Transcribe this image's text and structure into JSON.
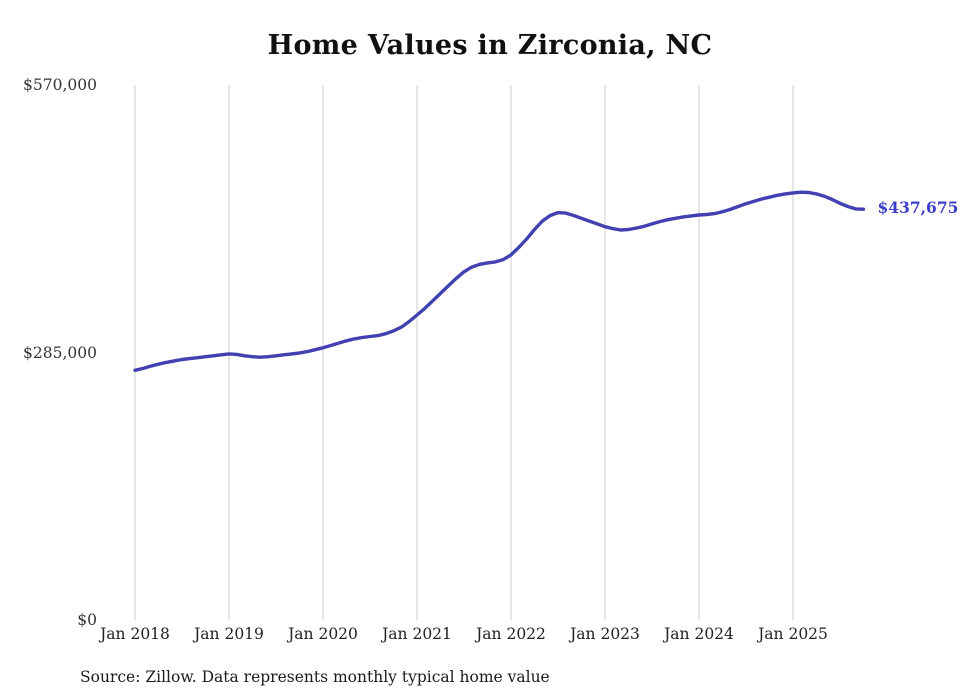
{
  "page": {
    "title": "Home Values in Zirconia, NC",
    "source_note": "Source: Zillow. Data represents monthly typical home value"
  },
  "chart_data": {
    "type": "line",
    "title": "Home Values in Zirconia, NC",
    "x_start": "2018-01",
    "x_end": "2025-10",
    "x_tick_labels": [
      "Jan 2018",
      "Jan 2019",
      "Jan 2020",
      "Jan 2021",
      "Jan 2022",
      "Jan 2023",
      "Jan 2024",
      "Jan 2025"
    ],
    "x_tick_month_indices": [
      0,
      12,
      24,
      36,
      48,
      60,
      72,
      84
    ],
    "y_ticks": [
      {
        "value": 570000,
        "label": "$570,000"
      },
      {
        "value": 285000,
        "label": "$285,000"
      },
      {
        "value": 0,
        "label": "$0"
      }
    ],
    "ylim": [
      0,
      570000
    ],
    "grid": "vertical-only",
    "legend": "none",
    "end_label": "$437,675",
    "line_color": "#4141b2",
    "end_label_color": "#3d3dcb",
    "gridline_color": "#cccccc",
    "series": [
      {
        "name": "Monthly typical home value",
        "values": [
          266000,
          268000,
          270500,
          272500,
          274500,
          276000,
          277500,
          278500,
          279500,
          280500,
          281500,
          282500,
          283500,
          283000,
          281500,
          280500,
          280000,
          280500,
          281500,
          282500,
          283500,
          284500,
          286000,
          288000,
          290000,
          292500,
          295000,
          297500,
          299500,
          301000,
          302000,
          303000,
          305000,
          308000,
          312000,
          318000,
          325000,
          332000,
          340000,
          348000,
          356000,
          364000,
          371000,
          376000,
          379000,
          380500,
          381500,
          384000,
          389000,
          397000,
          406000,
          416000,
          425000,
          431000,
          434000,
          433500,
          431000,
          428000,
          425000,
          422000,
          419000,
          417000,
          415500,
          416000,
          417500,
          419500,
          422000,
          424500,
          426500,
          428000,
          429500,
          430500,
          431500,
          432000,
          433000,
          435000,
          437500,
          440500,
          443500,
          446000,
          448500,
          450500,
          452500,
          454000,
          455000,
          455800,
          455500,
          454000,
          451500,
          448000,
          444000,
          440500,
          438000,
          437675
        ]
      }
    ]
  }
}
